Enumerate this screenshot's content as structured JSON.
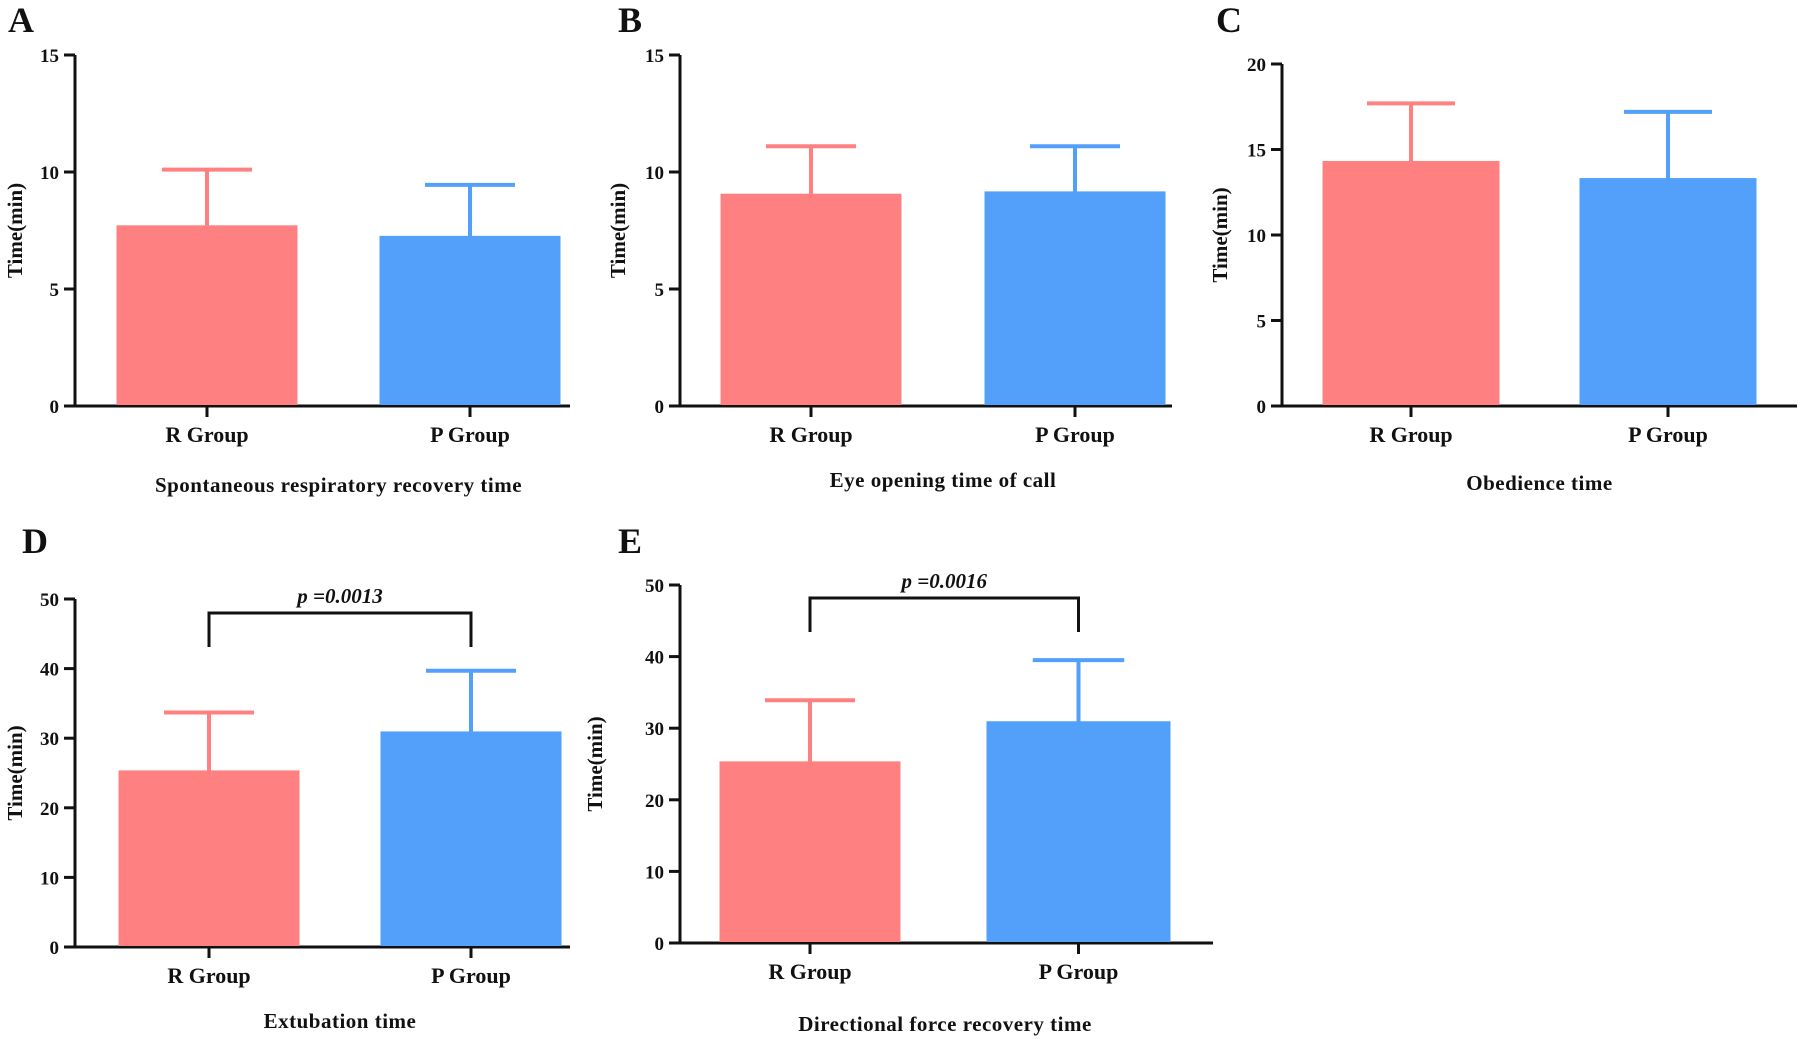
{
  "colors": {
    "r_group": "#FF8080",
    "p_group": "#52A0FA",
    "axis": "#111111"
  },
  "chart_data": [
    {
      "panel": "A",
      "type": "bar",
      "categories": [
        "R Group",
        "P Group"
      ],
      "values": [
        7.7,
        7.25
      ],
      "errors": [
        2.4,
        2.2
      ],
      "ylim": [
        0,
        15
      ],
      "yticks": [
        0,
        5,
        10,
        15
      ],
      "ylabel": "Time(min)",
      "xlabel": "Spontaneous respiratory recovery time",
      "pvalue": null
    },
    {
      "panel": "B",
      "type": "bar",
      "categories": [
        "R Group",
        "P Group"
      ],
      "values": [
        9.05,
        9.15
      ],
      "errors": [
        2.05,
        1.95
      ],
      "ylim": [
        0,
        15
      ],
      "yticks": [
        0,
        5,
        10,
        15
      ],
      "ylabel": "Time(min)",
      "xlabel": "Eye opening time of call",
      "pvalue": null
    },
    {
      "panel": "C",
      "type": "bar",
      "categories": [
        "R Group",
        "P Group"
      ],
      "values": [
        14.3,
        13.3
      ],
      "errors": [
        3.4,
        3.9
      ],
      "ylim": [
        0,
        20
      ],
      "yticks": [
        0,
        5,
        10,
        15,
        20
      ],
      "ylabel": "Time(min)",
      "xlabel": "Obedience time",
      "pvalue": null
    },
    {
      "panel": "D",
      "type": "bar",
      "categories": [
        "R Group",
        "P Group"
      ],
      "values": [
        25.3,
        30.9
      ],
      "errors": [
        8.4,
        8.8
      ],
      "ylim": [
        0,
        50
      ],
      "yticks": [
        0,
        10,
        20,
        30,
        40,
        50
      ],
      "ylabel": "Time(min)",
      "xlabel": "Extubation time",
      "pvalue": "p =0.0013"
    },
    {
      "panel": "E",
      "type": "bar",
      "categories": [
        "R Group",
        "P Group"
      ],
      "values": [
        25.3,
        30.9
      ],
      "errors": [
        8.6,
        8.6
      ],
      "ylim": [
        0,
        50
      ],
      "yticks": [
        0,
        10,
        20,
        30,
        40,
        50
      ],
      "ylabel": "Time(min)",
      "xlabel": "Directional force recovery time",
      "pvalue": "p =0.0016"
    }
  ]
}
